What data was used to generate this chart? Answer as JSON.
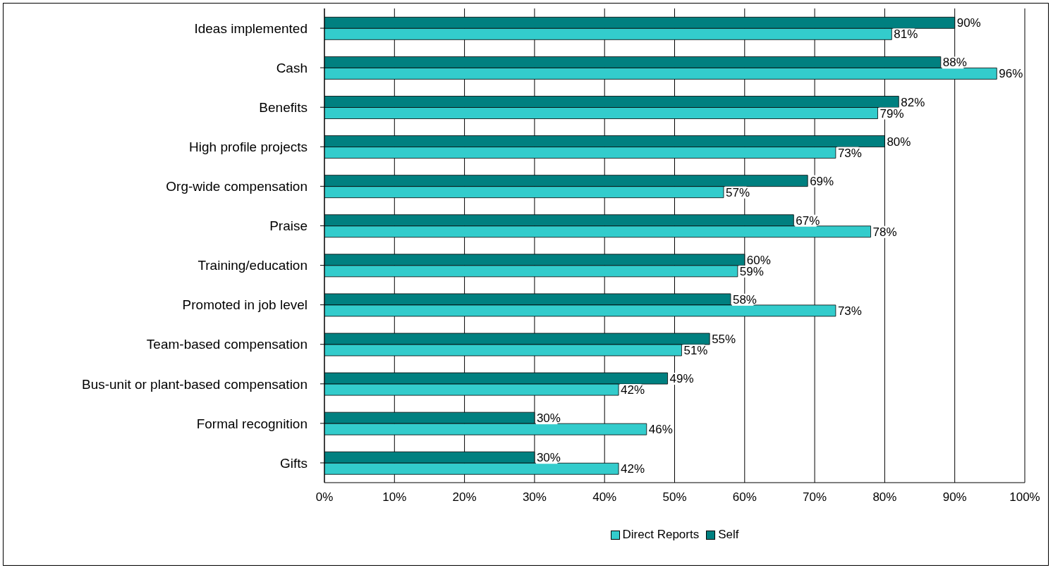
{
  "chart_data": {
    "type": "bar",
    "orientation": "horizontal",
    "categories": [
      "Ideas implemented",
      "Cash",
      "Benefits",
      "High profile projects",
      "Org-wide compensation",
      "Praise",
      "Training/education",
      "Promoted in job level",
      "Team-based compensation",
      "Bus-unit or plant-based compensation",
      "Formal recognition",
      "Gifts"
    ],
    "series": [
      {
        "name": "Direct Reports",
        "color": "#33cccc",
        "values": [
          81,
          96,
          79,
          73,
          57,
          78,
          59,
          73,
          51,
          42,
          46,
          42
        ],
        "value_labels": [
          "81%",
          "96%",
          "79%",
          "73%",
          "57%",
          "78%",
          "59%",
          "73%",
          "51%",
          "42%",
          "46%",
          "42%"
        ]
      },
      {
        "name": "Self",
        "color": "#008080",
        "values": [
          90,
          88,
          82,
          80,
          69,
          67,
          60,
          58,
          55,
          49,
          30,
          30
        ],
        "value_labels": [
          "90%",
          "88%",
          "82%",
          "80%",
          "69%",
          "67%",
          "60%",
          "58%",
          "55%",
          "49%",
          "30%",
          "30%"
        ]
      }
    ],
    "xlim": [
      0,
      100
    ],
    "xticks": [
      {
        "value": 0,
        "label": "0%"
      },
      {
        "value": 10,
        "label": "10%"
      },
      {
        "value": 20,
        "label": "20%"
      },
      {
        "value": 30,
        "label": "30%"
      },
      {
        "value": 40,
        "label": "40%"
      },
      {
        "value": 50,
        "label": "50%"
      },
      {
        "value": 60,
        "label": "60%"
      },
      {
        "value": 70,
        "label": "70%"
      },
      {
        "value": 80,
        "label": "80%"
      },
      {
        "value": 90,
        "label": "90%"
      },
      {
        "value": 100,
        "label": "100%"
      }
    ],
    "grid": "x",
    "legend": "bottom"
  }
}
